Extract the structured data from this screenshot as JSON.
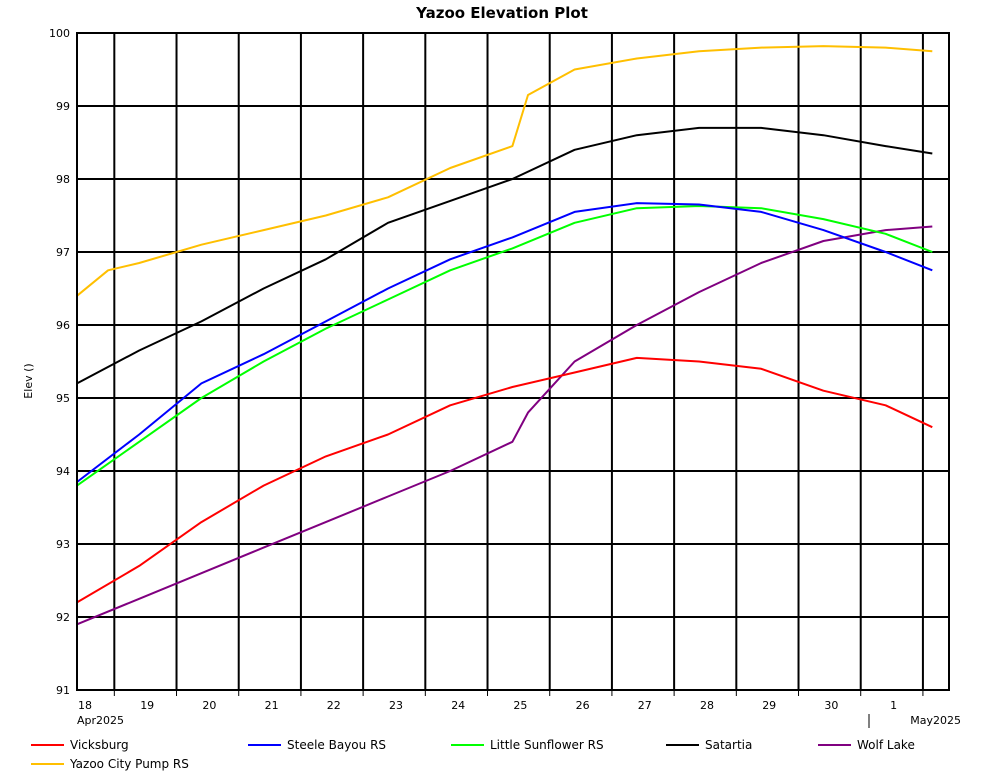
{
  "chart_data": {
    "type": "line",
    "title": "Yazoo Elevation Plot",
    "ylabel": "Elev ()",
    "ylim": [
      91,
      100
    ],
    "xlim": [
      "2025-04-18",
      "2025-05-02"
    ],
    "y_ticks": [
      "91",
      "92",
      "93",
      "94",
      "95",
      "96",
      "97",
      "98",
      "99",
      "100"
    ],
    "x_day_labels": [
      "18",
      "19",
      "20",
      "21",
      "22",
      "23",
      "24",
      "25",
      "26",
      "27",
      "28",
      "29",
      "30",
      "1"
    ],
    "x_month_labels": [
      "Apr2025",
      "May2025"
    ],
    "grid": true,
    "legend_position": "bottom",
    "series": [
      {
        "name": "Vicksburg",
        "color": "#ff0000",
        "x": [
          "2025-04-18",
          "2025-04-19",
          "2025-04-20",
          "2025-04-21",
          "2025-04-22",
          "2025-04-23",
          "2025-04-24",
          "2025-04-25",
          "2025-04-26",
          "2025-04-27",
          "2025-04-28",
          "2025-04-29",
          "2025-04-30",
          "2025-05-01",
          "2025-05-01 18:00"
        ],
        "y": [
          92.2,
          92.7,
          93.3,
          93.8,
          94.2,
          94.5,
          94.9,
          95.15,
          95.35,
          95.55,
          95.5,
          95.4,
          95.1,
          94.9,
          94.6
        ]
      },
      {
        "name": "Steele Bayou RS",
        "color": "#0000ff",
        "x": [
          "2025-04-18",
          "2025-04-19",
          "2025-04-20",
          "2025-04-21",
          "2025-04-22",
          "2025-04-23",
          "2025-04-24",
          "2025-04-25",
          "2025-04-26",
          "2025-04-27",
          "2025-04-28",
          "2025-04-29",
          "2025-04-30",
          "2025-05-01",
          "2025-05-01 18:00"
        ],
        "y": [
          93.85,
          94.5,
          95.2,
          95.6,
          96.05,
          96.5,
          96.9,
          97.2,
          97.55,
          97.67,
          97.65,
          97.55,
          97.3,
          97.0,
          96.75
        ]
      },
      {
        "name": "Little Sunflower RS",
        "color": "#00ff00",
        "x": [
          "2025-04-18",
          "2025-04-19",
          "2025-04-20",
          "2025-04-21",
          "2025-04-22",
          "2025-04-23",
          "2025-04-24",
          "2025-04-25",
          "2025-04-26",
          "2025-04-27",
          "2025-04-28",
          "2025-04-29",
          "2025-04-30",
          "2025-05-01",
          "2025-05-01 18:00"
        ],
        "y": [
          93.8,
          94.4,
          95.0,
          95.5,
          95.95,
          96.35,
          96.75,
          97.05,
          97.4,
          97.6,
          97.63,
          97.6,
          97.45,
          97.25,
          97.0
        ]
      },
      {
        "name": "Satartia",
        "color": "#000000",
        "x": [
          "2025-04-18",
          "2025-04-19",
          "2025-04-20",
          "2025-04-21",
          "2025-04-22",
          "2025-04-23",
          "2025-04-24",
          "2025-04-25",
          "2025-04-26",
          "2025-04-27",
          "2025-04-28",
          "2025-04-29",
          "2025-04-30",
          "2025-05-01",
          "2025-05-01 18:00"
        ],
        "y": [
          95.2,
          95.65,
          96.05,
          96.5,
          96.9,
          97.4,
          97.7,
          98.0,
          98.4,
          98.6,
          98.7,
          98.7,
          98.6,
          98.45,
          98.35
        ]
      },
      {
        "name": "Wolf Lake",
        "color": "#800080",
        "x": [
          "2025-04-18",
          "2025-04-19",
          "2025-04-20",
          "2025-04-21",
          "2025-04-22",
          "2025-04-23",
          "2025-04-24",
          "2025-04-25",
          "2025-04-25 06:00",
          "2025-04-26",
          "2025-04-27",
          "2025-04-28",
          "2025-04-29",
          "2025-04-30",
          "2025-05-01",
          "2025-05-01 18:00"
        ],
        "y": [
          91.9,
          92.25,
          92.6,
          92.95,
          93.3,
          93.65,
          94.0,
          94.4,
          94.8,
          95.5,
          96.0,
          96.45,
          96.85,
          97.15,
          97.3,
          97.35
        ]
      },
      {
        "name": "Yazoo City Pump RS",
        "color": "#ffbf00",
        "x": [
          "2025-04-18",
          "2025-04-18 12:00",
          "2025-04-19",
          "2025-04-20",
          "2025-04-21",
          "2025-04-22",
          "2025-04-23",
          "2025-04-24",
          "2025-04-25",
          "2025-04-25 06:00",
          "2025-04-26",
          "2025-04-27",
          "2025-04-28",
          "2025-04-29",
          "2025-04-30",
          "2025-05-01",
          "2025-05-01 18:00"
        ],
        "y": [
          96.4,
          96.75,
          96.85,
          97.1,
          97.3,
          97.5,
          97.75,
          98.15,
          98.45,
          99.15,
          99.5,
          99.65,
          99.75,
          99.8,
          99.82,
          99.8,
          99.75
        ]
      }
    ]
  }
}
